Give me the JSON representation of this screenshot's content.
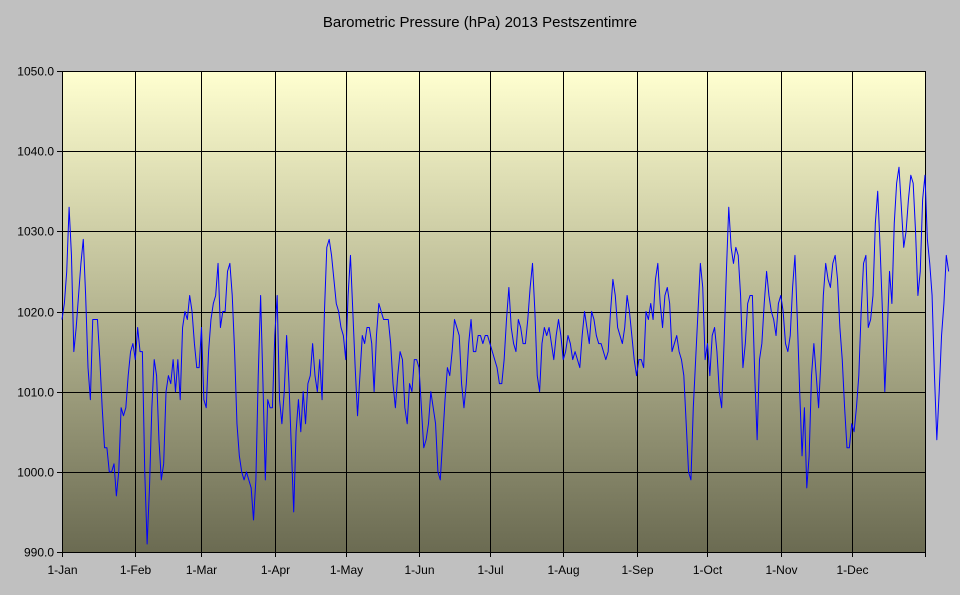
{
  "chart_data": {
    "type": "line",
    "title": "Barometric Pressure (hPa) 2013 Pestszentimre",
    "xlabel": "",
    "ylabel": "",
    "ylim": [
      990,
      1050
    ],
    "y_ticks": [
      "990.0",
      "1000.0",
      "1010.0",
      "1020.0",
      "1030.0",
      "1040.0",
      "1050.0"
    ],
    "x_ticks": [
      "1-Jan",
      "1-Feb",
      "1-Mar",
      "1-Apr",
      "1-May",
      "1-Jun",
      "1-Jul",
      "1-Aug",
      "1-Sep",
      "1-Oct",
      "1-Nov",
      "1-Dec"
    ],
    "x_tick_days": [
      1,
      32,
      60,
      91,
      121,
      152,
      182,
      213,
      244,
      274,
      305,
      335
    ],
    "x_range_days": [
      1,
      366
    ],
    "grid": true,
    "line_color": "#0000ff",
    "plot_background_gradient": [
      "#ffffd0",
      "#6b6b52"
    ],
    "series": [
      {
        "x_day_start": 1,
        "values": [
          1019,
          1021,
          1025,
          1033,
          1027,
          1015,
          1018,
          1022,
          1026,
          1029,
          1022,
          1013,
          1009,
          1019,
          1019,
          1019,
          1014,
          1008,
          1003,
          1003,
          1000,
          1000,
          1001,
          997,
          1000,
          1008,
          1007,
          1008,
          1012,
          1015,
          1016,
          1014,
          1018,
          1015,
          1015,
          1000,
          991,
          998,
          1008,
          1014,
          1012,
          1004,
          999,
          1001,
          1010,
          1012,
          1011,
          1014,
          1010,
          1014,
          1009,
          1018,
          1020,
          1019,
          1022,
          1020,
          1016,
          1013,
          1013,
          1018,
          1009,
          1008,
          1015,
          1019,
          1021,
          1022,
          1026,
          1018,
          1020,
          1020,
          1025,
          1026,
          1022,
          1015,
          1006,
          1002,
          1000,
          999,
          1000,
          999,
          998,
          994,
          999,
          1012,
          1022,
          1011,
          999,
          1009,
          1008,
          1008,
          1017,
          1022,
          1009,
          1006,
          1010,
          1017,
          1011,
          1003,
          995,
          1005,
          1009,
          1005,
          1010,
          1006,
          1011,
          1012,
          1016,
          1012,
          1010,
          1014,
          1009,
          1020,
          1028,
          1029,
          1027,
          1024,
          1021,
          1020,
          1018,
          1017,
          1014,
          1022,
          1027,
          1020,
          1013,
          1007,
          1012,
          1017,
          1016,
          1018,
          1018,
          1016,
          1010,
          1017,
          1021,
          1020,
          1019,
          1019,
          1019,
          1016,
          1011,
          1008,
          1012,
          1015,
          1014,
          1008,
          1006,
          1011,
          1010,
          1014,
          1014,
          1013,
          1008,
          1003,
          1004,
          1006,
          1010,
          1008,
          1006,
          1000,
          999,
          1004,
          1009,
          1013,
          1012,
          1015,
          1019,
          1018,
          1017,
          1011,
          1008,
          1011,
          1016,
          1019,
          1015,
          1015,
          1017,
          1017,
          1016,
          1017,
          1017,
          1016,
          1015,
          1014,
          1013,
          1011,
          1011,
          1014,
          1019,
          1023,
          1018,
          1016,
          1015,
          1019,
          1018,
          1016,
          1016,
          1019,
          1023,
          1026,
          1020,
          1012,
          1010,
          1016,
          1018,
          1017,
          1018,
          1016,
          1014,
          1017,
          1019,
          1017,
          1014,
          1015,
          1017,
          1016,
          1014,
          1015,
          1014,
          1013,
          1017,
          1020,
          1018,
          1016,
          1020,
          1019,
          1017,
          1016,
          1016,
          1015,
          1014,
          1015,
          1020,
          1024,
          1022,
          1018,
          1017,
          1016,
          1018,
          1022,
          1020,
          1017,
          1014,
          1012,
          1014,
          1014,
          1013,
          1020,
          1019,
          1021,
          1019,
          1024,
          1026,
          1021,
          1018,
          1022,
          1023,
          1021,
          1015,
          1016,
          1017,
          1015,
          1014,
          1012,
          1006,
          1000,
          999,
          1008,
          1014,
          1020,
          1026,
          1023,
          1014,
          1016,
          1012,
          1017,
          1018,
          1015,
          1010,
          1008,
          1016,
          1025,
          1033,
          1028,
          1026,
          1028,
          1027,
          1022,
          1013,
          1016,
          1021,
          1022,
          1022,
          1012,
          1004,
          1014,
          1016,
          1021,
          1025,
          1022,
          1020,
          1019,
          1017,
          1021,
          1022,
          1020,
          1016,
          1015,
          1017,
          1023,
          1027,
          1019,
          1010,
          1002,
          1008,
          998,
          1002,
          1012,
          1016,
          1012,
          1008,
          1014,
          1022,
          1026,
          1024,
          1023,
          1026,
          1027,
          1024,
          1018,
          1014,
          1008,
          1003,
          1003,
          1006,
          1005,
          1008,
          1012,
          1020,
          1026,
          1027,
          1018,
          1019,
          1022,
          1031,
          1035,
          1028,
          1020,
          1010,
          1017,
          1025,
          1021,
          1031,
          1036,
          1038,
          1033,
          1028,
          1030,
          1034,
          1037,
          1036,
          1030,
          1022,
          1025,
          1034,
          1037,
          1029,
          1026,
          1022,
          1012,
          1004,
          1010,
          1017,
          1021,
          1027,
          1025
        ]
      }
    ]
  }
}
